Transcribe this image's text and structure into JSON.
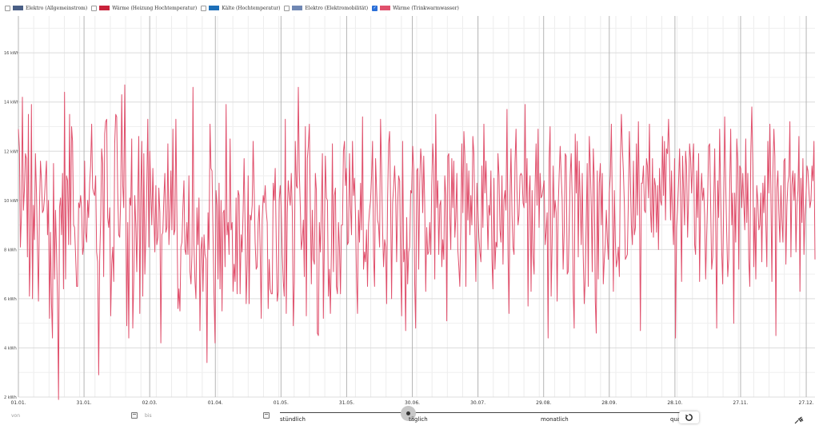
{
  "legend": [
    {
      "label": "Elektro (Allgemeinstrom)",
      "color": "#4a5f86",
      "checked": false
    },
    {
      "label": "Wärme (Heizung Hochtemperatur)",
      "color": "#c8223a",
      "checked": false
    },
    {
      "label": "Kälte (Hochtemperatur)",
      "color": "#1d6fb8",
      "checked": false
    },
    {
      "label": "Elektro (Elektromobilität)",
      "color": "#6f87b3",
      "checked": false
    },
    {
      "label": "Wärme (Trinkwarmwasser)",
      "color": "#e0506c",
      "checked": true
    }
  ],
  "chart_data": {
    "type": "line",
    "series": [
      {
        "name": "Wärme (Trinkwarmwasser)",
        "color": "#e0506c",
        "values": [
          12.9,
          12.1,
          8.1,
          9.4,
          14.2,
          9.6,
          10.4,
          11.9,
          11.7,
          7.7,
          13.5,
          6.1,
          8.1,
          13.9,
          6.0,
          9.8,
          8.4,
          11.9,
          10.3,
          8.2,
          5.9,
          9.6,
          11.6,
          10.8,
          9.5,
          9.6,
          10.1,
          10.9,
          11.6,
          8.6,
          10.0,
          5.2,
          8.7,
          5.8,
          4.4,
          11.5,
          6.8,
          9.6,
          7.9,
          6.0,
          1.9,
          9.7,
          10.1,
          8.6,
          11.1,
          6.4,
          14.4,
          6.8,
          11.0,
          10.8,
          8.2,
          13.5,
          8.2,
          13.0,
          12.4,
          9.0,
          8.9,
          7.8,
          6.5,
          6.5,
          9.9,
          9.7,
          10.2,
          9.7,
          7.8,
          8.1,
          11.6,
          8.7,
          8.3,
          10.0,
          9.3,
          10.7,
          11.4,
          13.1,
          10.5,
          10.3,
          10.2,
          11.0,
          7.9,
          7.5,
          2.9,
          7.6,
          9.2,
          12.1,
          11.5,
          6.9,
          12.7,
          13.2,
          13.3,
          9.3,
          8.9,
          9.7,
          5.3,
          7.4,
          8.1,
          6.7,
          12.3,
          13.5,
          13.4,
          10.3,
          8.6,
          8.5,
          10.1,
          14.3,
          10.6,
          9.7,
          14.7,
          10.5,
          4.9,
          9.1,
          4.4,
          10.1,
          9.8,
          12.5,
          4.8,
          6.8,
          10.2,
          9.0,
          7.1,
          10.1,
          12.6,
          5.4,
          10.3,
          12.4,
          6.1,
          11.9,
          7.0,
          8.5,
          10.7,
          13.3,
          8.1,
          12.0,
          10.3,
          9.0,
          11.3,
          9.5,
          7.9,
          10.6,
          8.2,
          8.5,
          10.5,
          9.5,
          4.2,
          8.6,
          8.7,
          10.1,
          11.1,
          8.7,
          8.9,
          12.3,
          8.2,
          9.3,
          11.2,
          8.8,
          12.9,
          8.6,
          8.8,
          13.3,
          9.4,
          5.6,
          6.4,
          5.5,
          8.1,
          8.3,
          9.7,
          10.8,
          8.0,
          7.8,
          9.1,
          7.8,
          11.0,
          7.1,
          6.6,
          7.8,
          14.6,
          8.2,
          6.7,
          6.0,
          9.7,
          8.2,
          10.1,
          4.7,
          8.0,
          8.5,
          6.3,
          8.6,
          7.8,
          7.6,
          3.4,
          9.5,
          8.0,
          13.1,
          11.3,
          11.2,
          8.5,
          6.1,
          4.2,
          10.4,
          9.8,
          6.8,
          10.7,
          6.4,
          10.0,
          5.5,
          9.5,
          9.6,
          7.3,
          13.9,
          8.6,
          9.1,
          7.8,
          12.5,
          8.8,
          9.1,
          6.3,
          7.4,
          6.7,
          10.1,
          6.2,
          10.4,
          10.2,
          6.2,
          8.6,
          7.9,
          9.6,
          11.7,
          8.8,
          5.8,
          7.4,
          11.0,
          5.8,
          9.4,
          9.2,
          9.8,
          12.4,
          10.4,
          8.3,
          7.2,
          7.3,
          9.1,
          9.8,
          8.0,
          5.2,
          9.2,
          10.2,
          9.9,
          10.6,
          9.6,
          9.1,
          5.6,
          7.6,
          6.4,
          6.2,
          6.2,
          10.7,
          10.0,
          11.3,
          8.3,
          5.9,
          6.3,
          10.0,
          10.6,
          9.6,
          7.8,
          6.7,
          6.1,
          13.3,
          5.4,
          9.5,
          10.8,
          10.2,
          9.8,
          11.1,
          9.5,
          4.9,
          6.7,
          12.4,
          10.6,
          10.5,
          14.6,
          11.2,
          9.7,
          8.0,
          8.4,
          9.2,
          6.9,
          13.0,
          5.3,
          11.7,
          12.2,
          13.1,
          9.8,
          6.6,
          9.6,
          7.6,
          7.4,
          11.1,
          10.4,
          4.6,
          4.5,
          9.1,
          7.9,
          9.6,
          11.9,
          5.2,
          8.6,
          11.8,
          10.1,
          10.0,
          6.1,
          7.2,
          5.4,
          8.0,
          12.3,
          7.1,
          10.2,
          10.5,
          6.5,
          6.2,
          9.1,
          8.1,
          6.2,
          9.0,
          9.0,
          12.0,
          12.4,
          10.6,
          11.3,
          8.2,
          8.3,
          11.9,
          9.8,
          8.6,
          12.4,
          10.2,
          10.9,
          9.4,
          6.9,
          5.4,
          9.6,
          8.3,
          10.7,
          8.8,
          13.4,
          7.2,
          7.9,
          7.5,
          8.8,
          6.5,
          9.0,
          9.6,
          10.0,
          11.0,
          12.4,
          7.7,
          6.5,
          11.7,
          10.5,
          9.2,
          9.0,
          8.1,
          13.3,
          11.3,
          8.7,
          7.3,
          8.4,
          8.1,
          5.8,
          10.0,
          12.3,
          12.8,
          9.9,
          6.0,
          9.9,
          10.5,
          11.4,
          10.3,
          7.5,
          9.8,
          11.0,
          10.8,
          7.4,
          5.3,
          12.4,
          7.5,
          8.0,
          4.7,
          9.3,
          6.6,
          7.9,
          8.1,
          10.4,
          10.3,
          12.2,
          11.3,
          6.6,
          4.8,
          11.2,
          11.3,
          7.2,
          10.7,
          12.1,
          11.5,
          9.5,
          11.8,
          9.9,
          6.3,
          8.9,
          7.8,
          7.9,
          9.1,
          7.8,
          10.6,
          12.3,
          11.4,
          6.8,
          13.5,
          9.7,
          10.8,
          7.8,
          9.8,
          10.0,
          7.3,
          8.4,
          7.6,
          11.0,
          10.2,
          5.1,
          11.8,
          11.9,
          9.4,
          8.0,
          11.7,
          9.7,
          11.6,
          8.5,
          9.3,
          11.1,
          8.0,
          7.3,
          6.5,
          8.9,
          12.3,
          9.5,
          12.8,
          11.8,
          6.5,
          11.5,
          9.2,
          11.2,
          8.6,
          10.2,
          9.0,
          12.6,
          11.9,
          8.7,
          6.7,
          10.7,
          9.6,
          8.5,
          7.9,
          7.5,
          11.4,
          8.9,
          13.1,
          10.3,
          11.6,
          9.9,
          8.0,
          9.8,
          9.4,
          11.2,
          7.6,
          6.4,
          10.9,
          7.2,
          8.3,
          8.1,
          11.9,
          11.0,
          8.8,
          8.3,
          11.0,
          7.4,
          10.0,
          10.4,
          9.6,
          13.7,
          7.8,
          5.4,
          10.2,
          12.1,
          9.4,
          8.1,
          7.8,
          11.5,
          12.9,
          10.4,
          9.0,
          9.4,
          11.0,
          11.1,
          11.0,
          9.9,
          9.7,
          13.9,
          9.9,
          11.7,
          5.7,
          10.3,
          11.0,
          6.3,
          10.4,
          7.7,
          7.0,
          10.5,
          12.3,
          9.8,
          12.9,
          8.9,
          11.1,
          10.1,
          10.2,
          10.5,
          10.8,
          8.2,
          8.7,
          9.5,
          4.4,
          11.7,
          13.0,
          6.1,
          8.2,
          11.4,
          9.3,
          10.0,
          9.5,
          5.9,
          9.7,
          11.0,
          12.2,
          11.1,
          10.0,
          7.2,
          8.7,
          11.9,
          11.8,
          7.0,
          7.1,
          9.1,
          11.0,
          11.9,
          10.1,
          6.3,
          4.8,
          12.7,
          10.3,
          12.4,
          7.7,
          11.6,
          10.0,
          8.2,
          11.1,
          7.8,
          5.8,
          6.8,
          9.1,
          11.5,
          6.5,
          12.6,
          11.5,
          9.7,
          7.1,
          12.1,
          10.9,
          5.9,
          4.6,
          11.2,
          6.8,
          10.7,
          11.5,
          9.0,
          11.1,
          6.6,
          7.6,
          8.2,
          9.6,
          8.5,
          7.6,
          10.3,
          11.0,
          13.1,
          9.8,
          6.3,
          10.4,
          8.3,
          7.3,
          7.6,
          8.1,
          6.9,
          11.4,
          13.5,
          12.1,
          11.2,
          9.8,
          7.6,
          7.7,
          7.8,
          10.1,
          12.8,
          10.8,
          9.0,
          8.2,
          11.6,
          8.6,
          8.9,
          12.3,
          9.4,
          13.2,
          9.8,
          4.7,
          10.7,
          10.7,
          11.4,
          9.6,
          9.5,
          11.7,
          11.4,
          10.1,
          13.1,
          9.6,
          8.7,
          11.7,
          8.5,
          10.9,
          10.6,
          8.7,
          10.6,
          8.0,
          11.3,
          10.0,
          9.8,
          12.6,
          10.2,
          12.4,
          9.2,
          12.1,
          11.9,
          13.3,
          11.6,
          9.2,
          11.2,
          9.3,
          8.2,
          11.7,
          4.4,
          8.9,
          9.6,
          10.7,
          12.1,
          10.1,
          6.7,
          11.8,
          10.4,
          9.0,
          12.0,
          11.4,
          8.5,
          10.0,
          12.3,
          11.7,
          10.3,
          11.5,
          12.3,
          8.2,
          7.8,
          11.2,
          9.3,
          11.9,
          6.7,
          10.1,
          11.1,
          10.0,
          10.5,
          9.4,
          6.8,
          8.5,
          10.1,
          12.2,
          12.3,
          9.9,
          7.2,
          7.7,
          9.8,
          12.1,
          9.1,
          4.8,
          10.8,
          9.3,
          12.9,
          10.2,
          8.0,
          6.6,
          9.8,
          13.4,
          10.6,
          8.7,
          6.9,
          7.6,
          10.6,
          12.9,
          9.0,
          10.3,
          5.0,
          10.3,
          8.3,
          12.5,
          11.6,
          7.2,
          11.4,
          11.3,
          9.7,
          11.1,
          9.9,
          8.8,
          12.5,
          9.1,
          11.1,
          7.6,
          6.5,
          11.9,
          13.8,
          11.4,
          7.3,
          9.7,
          6.8,
          10.6,
          10.0,
          8.8,
          9.0,
          10.3,
          7.5,
          10.7,
          9.5,
          11.0,
          9.1,
          7.3,
          12.4,
          10.3,
          13.1,
          10.4,
          6.7,
          11.1,
          12.9,
          11.8,
          4.5,
          10.5,
          11.2,
          9.5,
          8.3,
          10.6,
          9.2,
          8.3,
          11.6,
          11.7,
          7.4,
          9.8,
          10.7,
          11.0,
          13.2,
          7.7,
          10.6,
          11.2,
          10.0,
          11.1,
          7.9,
          9.8,
          10.4,
          12.6,
          6.3,
          10.9,
          9.1,
          11.7,
          7.8,
          9.4,
          10.1,
          11.4,
          11.2,
          10.3,
          9.7,
          10.0,
          11.4,
          10.8,
          12.4,
          7.6
        ]
      }
    ],
    "y_ticks": [
      "2 kWh",
      "4 kWh",
      "6 kWh",
      "8 kWh",
      "10 kWh",
      "12 kWh",
      "14 kWh",
      "16 kWh"
    ],
    "y_tick_values": [
      2,
      4,
      6,
      8,
      10,
      12,
      14,
      16
    ],
    "ylim": [
      2,
      17.5
    ],
    "x_ticks": [
      "01.01.",
      "31.01.",
      "02.03.",
      "01.04.",
      "01.05.",
      "31.05.",
      "30.06.",
      "30.07.",
      "29.08.",
      "28.09.",
      "28.10.",
      "27.11.",
      "27.12."
    ],
    "x_tick_days": [
      0,
      30,
      60,
      90,
      120,
      150,
      180,
      210,
      240,
      270,
      300,
      330,
      360
    ],
    "xlim": [
      0,
      364
    ],
    "grid": true,
    "legend_position": "top-left"
  },
  "controls": {
    "from_placeholder": "von",
    "to_placeholder": "bis",
    "granularity": [
      "stündlich",
      "täglich",
      "monatlich",
      "quar"
    ],
    "granularity_selected": "täglich",
    "reset_icon": "reset-icon",
    "pin_icon": "pin-icon"
  }
}
